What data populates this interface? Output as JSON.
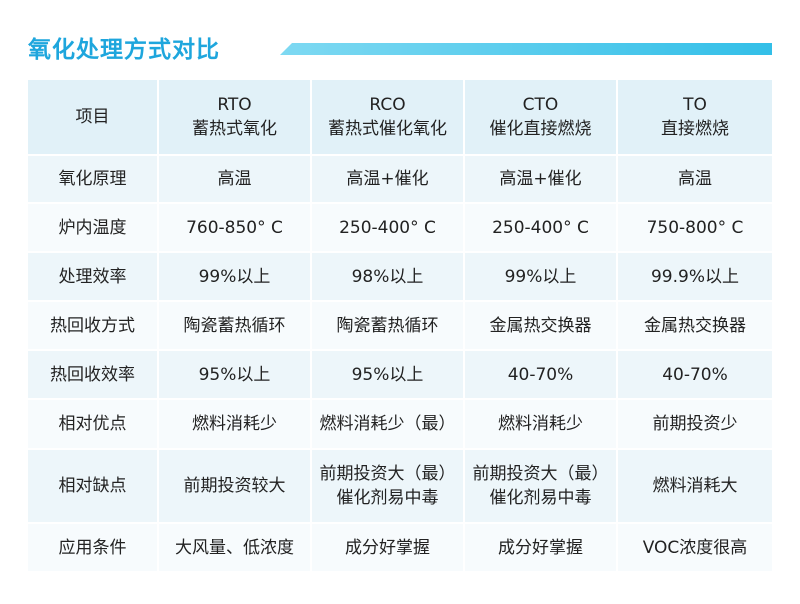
{
  "title": "氧化处理方式对比",
  "columns": [
    {
      "line1": "项目",
      "line2": ""
    },
    {
      "line1": "RTO",
      "line2": "蓄热式氧化"
    },
    {
      "line1": "RCO",
      "line2": "蓄热式催化氧化"
    },
    {
      "line1": "CTO",
      "line2": "催化直接燃烧"
    },
    {
      "line1": "TO",
      "line2": "直接燃烧"
    }
  ],
  "rows": [
    {
      "label": "氧化原理",
      "cells": [
        [
          "高温"
        ],
        [
          "高温+催化"
        ],
        [
          "高温+催化"
        ],
        [
          "高温"
        ]
      ]
    },
    {
      "label": "炉内温度",
      "cells": [
        [
          "760-850° C"
        ],
        [
          "250-400° C"
        ],
        [
          "250-400° C"
        ],
        [
          "750-800° C"
        ]
      ]
    },
    {
      "label": "处理效率",
      "cells": [
        [
          "99%以上"
        ],
        [
          "98%以上"
        ],
        [
          "99%以上"
        ],
        [
          "99.9%以上"
        ]
      ]
    },
    {
      "label": "热回收方式",
      "cells": [
        [
          "陶瓷蓄热循环"
        ],
        [
          "陶瓷蓄热循环"
        ],
        [
          "金属热交换器"
        ],
        [
          "金属热交换器"
        ]
      ]
    },
    {
      "label": "热回收效率",
      "cells": [
        [
          "95%以上"
        ],
        [
          "95%以上"
        ],
        [
          "40-70%"
        ],
        [
          "40-70%"
        ]
      ]
    },
    {
      "label": "相对优点",
      "cells": [
        [
          "燃料消耗少"
        ],
        [
          "燃料消耗少（最）"
        ],
        [
          "燃料消耗少"
        ],
        [
          "前期投资少"
        ]
      ]
    },
    {
      "label": "相对缺点",
      "cells": [
        [
          "前期投资较大"
        ],
        [
          "前期投资大（最）",
          "催化剂易中毒"
        ],
        [
          "前期投资大（最）",
          "催化剂易中毒"
        ],
        [
          "燃料消耗大"
        ]
      ]
    },
    {
      "label": "应用条件",
      "cells": [
        [
          "大风量、低浓度"
        ],
        [
          "成分好掌握"
        ],
        [
          "成分好掌握"
        ],
        [
          "VOC浓度很高"
        ]
      ]
    }
  ]
}
